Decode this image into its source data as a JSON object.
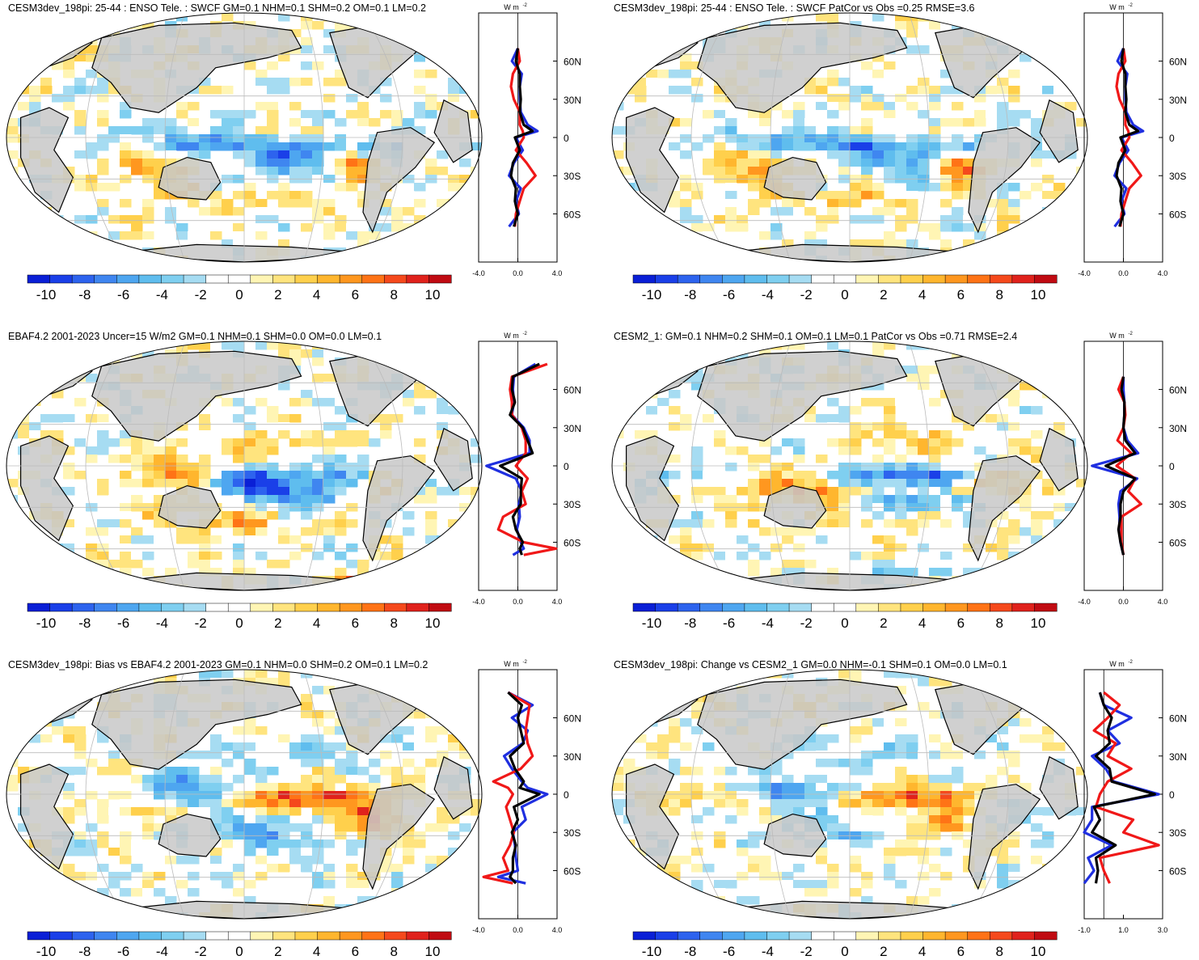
{
  "figure": {
    "colorbar": {
      "colors": [
        "#0a1fd6",
        "#1a3fe8",
        "#2d63ee",
        "#3f86f0",
        "#4ea6f0",
        "#5fbdee",
        "#7fcff0",
        "#a6dcf2",
        "#ffffff",
        "#ffffff",
        "#fff5b4",
        "#ffe47e",
        "#ffd04c",
        "#ffb62e",
        "#ff971f",
        "#ff7316",
        "#f5491c",
        "#e0221c",
        "#c00b12"
      ],
      "labels": [
        "-10",
        "-8",
        "-6",
        "-4",
        "-2",
        "0",
        "2",
        "4",
        "6",
        "8",
        "10"
      ]
    },
    "profile_unit": "W m",
    "profile_unit_sup": "-2",
    "lat_labels": [
      "60N",
      "30N",
      "0",
      "30S",
      "60S"
    ],
    "line_colors": {
      "model": "#1f2fe0",
      "obs": "#f01818",
      "diff": "#000000"
    },
    "land_color": "#c8c8c8",
    "panels": [
      {
        "title": "CESM3dev_198pi: 25-44 : ENSO Tele. : SWCF GM=0.1 NHM=0.1 SHM=0.2 OM=0.1 LM=0.2",
        "xticks": [
          "-4.0",
          "0.0",
          "4.0"
        ],
        "pattern": "model"
      },
      {
        "title": "CESM3dev_198pi: 25-44 : ENSO Tele. : SWCF PatCor vs Obs =0.25 RMSE=3.6",
        "xticks": [
          "-4.0",
          "0.0",
          "4.0"
        ],
        "pattern": "model"
      },
      {
        "title": "EBAF4.2 2001-2023 Uncer=15 W/m2 GM=0.1 NHM=0.1 SHM=0.0 OM=0.0 LM=0.1",
        "xticks": [
          "-4.0",
          "0.0",
          "4.0"
        ],
        "pattern": "obs"
      },
      {
        "title": "CESM2_1: GM=0.1 NHM=0.2 SHM=0.1 OM=0.1 LM=0.1 PatCor vs Obs =0.71 RMSE=2.4",
        "xticks": [
          "-4.0",
          "0.0",
          "4.0"
        ],
        "pattern": "cesm2"
      },
      {
        "title": "CESM3dev_198pi: Bias vs EBAF4.2 2001-2023 GM=0.1 NHM=0.0 SHM=0.2 OM=0.1 LM=0.2",
        "xticks": [
          "-4.0",
          "0.0",
          "4.0"
        ],
        "pattern": "bias"
      },
      {
        "title": "CESM3dev_198pi: Change vs CESM2_1 GM=0.0 NHM=-0.1 SHM=0.1 OM=0.0 LM=0.1",
        "xticks": [
          "-1.0",
          "1.0",
          "3.0"
        ],
        "pattern": "change"
      }
    ]
  },
  "chart_data": {
    "type": "heatmap",
    "colorbar_range": [
      -11,
      11
    ],
    "colorbar_ticks": [
      -10,
      -8,
      -6,
      -4,
      -2,
      0,
      2,
      4,
      6,
      8,
      10
    ],
    "profile_axis": {
      "ylabels": [
        "60N",
        "30N",
        "0",
        "30S",
        "60S"
      ]
    },
    "profiles": [
      {
        "panel": 1,
        "lats": [
          70,
          60,
          50,
          40,
          30,
          20,
          10,
          5,
          0,
          -10,
          -20,
          -30,
          -40,
          -50,
          -60,
          -70
        ],
        "series": [
          {
            "color": "blue",
            "values": [
              0.0,
              -0.6,
              0.4,
              0.2,
              0.2,
              0.3,
              1.0,
              2.0,
              -0.2,
              0.5,
              -0.4,
              -0.9,
              0.3,
              -0.2,
              0.1,
              -0.9
            ]
          },
          {
            "color": "red",
            "values": [
              0.0,
              0.2,
              -0.5,
              -0.7,
              -0.4,
              0.2,
              0.2,
              0.5,
              0.6,
              -0.2,
              0.9,
              1.8,
              0.6,
              0.2,
              -0.2,
              -0.3
            ]
          },
          {
            "color": "black",
            "values": [
              0.0,
              -0.2,
              0.2,
              0.2,
              0.3,
              0.2,
              0.6,
              1.5,
              -0.3,
              0.2,
              -0.5,
              -0.7,
              -0.2,
              -0.3,
              0.0,
              -0.4
            ]
          }
        ]
      },
      {
        "panel": 2,
        "lats": [
          70,
          60,
          50,
          40,
          30,
          20,
          10,
          5,
          0,
          -10,
          -20,
          -30,
          -40,
          -50,
          -60,
          -70
        ],
        "series": [
          {
            "color": "blue",
            "values": [
              0.0,
              -0.6,
              0.4,
              0.2,
              0.2,
              0.3,
              1.0,
              2.0,
              -0.2,
              0.5,
              -0.4,
              -0.9,
              0.3,
              -0.2,
              0.1,
              -0.9
            ]
          },
          {
            "color": "red",
            "values": [
              0.0,
              0.2,
              -0.5,
              -0.7,
              -0.4,
              0.2,
              0.2,
              0.5,
              0.6,
              -0.2,
              0.9,
              1.8,
              0.6,
              0.2,
              -0.2,
              -0.3
            ]
          },
          {
            "color": "black",
            "values": [
              0.0,
              -0.2,
              0.2,
              0.2,
              0.3,
              0.2,
              0.6,
              1.5,
              -0.3,
              0.2,
              -0.5,
              -0.7,
              -0.2,
              -0.3,
              0.0,
              -0.4
            ]
          }
        ]
      },
      {
        "panel": 3,
        "lats": [
          80,
          70,
          60,
          50,
          40,
          30,
          20,
          10,
          0,
          -10,
          -20,
          -30,
          -40,
          -50,
          -60,
          -65,
          -70
        ],
        "series": [
          {
            "color": "blue",
            "values": [
              1.8,
              -0.4,
              -0.5,
              -0.4,
              -0.6,
              0.6,
              1.2,
              1.2,
              -3.2,
              -0.2,
              0.4,
              0.1,
              0.2,
              -0.1,
              0.3,
              0.6,
              -0.5
            ]
          },
          {
            "color": "red",
            "values": [
              3.0,
              -0.6,
              -0.8,
              -0.6,
              -0.6,
              0.4,
              0.8,
              0.8,
              -0.2,
              1.0,
              0.4,
              0.8,
              -1.5,
              -2.0,
              0.6,
              3.9,
              0.6
            ]
          },
          {
            "color": "black",
            "values": [
              2.2,
              -0.5,
              -0.6,
              -0.3,
              -0.8,
              0.5,
              1.0,
              1.5,
              -1.8,
              0.4,
              0.3,
              0.3,
              -0.5,
              -0.2,
              0.5,
              0.2,
              0.4
            ]
          }
        ]
      },
      {
        "panel": 4,
        "lats": [
          70,
          60,
          50,
          40,
          30,
          20,
          10,
          0,
          -10,
          -20,
          -30,
          -40,
          -50,
          -60,
          -70
        ],
        "series": [
          {
            "color": "blue",
            "values": [
              0.0,
              0.0,
              0.1,
              0.1,
              0.0,
              0.4,
              1.5,
              -3.2,
              1.4,
              -0.3,
              -0.5,
              -0.4,
              -0.4,
              -0.3,
              0.0
            ]
          },
          {
            "color": "red",
            "values": [
              0.0,
              -0.5,
              0.1,
              0.2,
              0.0,
              -0.6,
              0.8,
              -0.7,
              1.2,
              0.5,
              1.8,
              -0.2,
              -0.2,
              -0.2,
              0.0
            ]
          },
          {
            "color": "black",
            "values": [
              0.0,
              -0.2,
              0.1,
              0.1,
              0.0,
              0.2,
              1.2,
              -1.8,
              1.2,
              0.0,
              -0.3,
              -0.3,
              -0.5,
              -0.3,
              0.0
            ]
          }
        ]
      },
      {
        "panel": 5,
        "lats": [
          80,
          70,
          60,
          50,
          40,
          30,
          20,
          10,
          5,
          0,
          -10,
          -20,
          -30,
          -40,
          -50,
          -60,
          -65,
          -70
        ],
        "series": [
          {
            "color": "blue",
            "values": [
              -1.0,
              1.5,
              -0.6,
              1.0,
              0.5,
              -1.4,
              -0.6,
              0.4,
              1.0,
              3.0,
              0.4,
              0.8,
              -0.5,
              -0.3,
              -0.2,
              0.0,
              -2.0,
              0.8
            ]
          },
          {
            "color": "red",
            "values": [
              -1.0,
              1.2,
              1.0,
              0.8,
              1.0,
              1.5,
              0.3,
              -2.5,
              -1.0,
              -0.5,
              -1.2,
              -0.8,
              -0.4,
              -0.8,
              -1.5,
              -1.0,
              -3.5,
              -0.5
            ]
          },
          {
            "color": "black",
            "values": [
              -1.0,
              0.4,
              0.0,
              0.3,
              0.6,
              -0.8,
              -0.3,
              0.6,
              0.2,
              2.2,
              -0.4,
              0.0,
              -0.6,
              -0.2,
              -0.5,
              -0.5,
              -0.8,
              -0.2
            ]
          }
        ]
      },
      {
        "panel": 6,
        "lats": [
          80,
          70,
          60,
          50,
          40,
          30,
          20,
          10,
          0,
          -10,
          -20,
          -30,
          -40,
          -50,
          -60,
          -70
        ],
        "series": [
          {
            "color": "blue",
            "values": [
              -0.2,
              0.0,
              1.4,
              0.2,
              0.8,
              -0.6,
              0.1,
              0.5,
              2.8,
              -0.6,
              -0.6,
              -1.0,
              0.4,
              -0.8,
              -0.5,
              -1.0
            ]
          },
          {
            "color": "red",
            "values": [
              0.0,
              0.8,
              0.2,
              -0.5,
              0.6,
              0.2,
              1.4,
              0.2,
              -0.2,
              -0.4,
              1.5,
              1.0,
              2.8,
              -0.2,
              0.0,
              0.3
            ]
          },
          {
            "color": "black",
            "values": [
              -0.2,
              0.0,
              0.4,
              0.2,
              0.3,
              -0.4,
              0.3,
              0.4,
              2.6,
              -0.5,
              -0.2,
              -0.6,
              0.6,
              -0.4,
              -0.3,
              -0.4
            ]
          }
        ]
      }
    ]
  }
}
